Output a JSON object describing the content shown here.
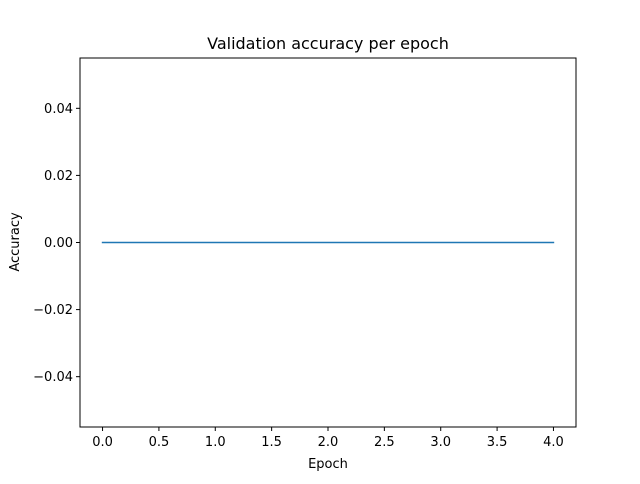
{
  "chart_data": {
    "type": "line",
    "title": "Validation accuracy per epoch",
    "xlabel": "Epoch",
    "ylabel": "Accuracy",
    "xlim": [
      -0.2,
      4.2
    ],
    "ylim": [
      -0.055,
      0.055
    ],
    "xticks": [
      0.0,
      0.5,
      1.0,
      1.5,
      2.0,
      2.5,
      3.0,
      3.5,
      4.0
    ],
    "xtick_labels": [
      "0.0",
      "0.5",
      "1.0",
      "1.5",
      "2.0",
      "2.5",
      "3.0",
      "3.5",
      "4.0"
    ],
    "yticks": [
      -0.04,
      -0.02,
      0.0,
      0.02,
      0.04
    ],
    "ytick_labels": [
      "−0.04",
      "−0.02",
      "0.00",
      "0.02",
      "0.04"
    ],
    "grid": false,
    "legend": "none",
    "series": [
      {
        "color": "#1f77b4",
        "x": [
          0,
          1,
          2,
          3,
          4
        ],
        "y": [
          0.0,
          0.0,
          0.0,
          0.0,
          0.0
        ]
      }
    ]
  }
}
